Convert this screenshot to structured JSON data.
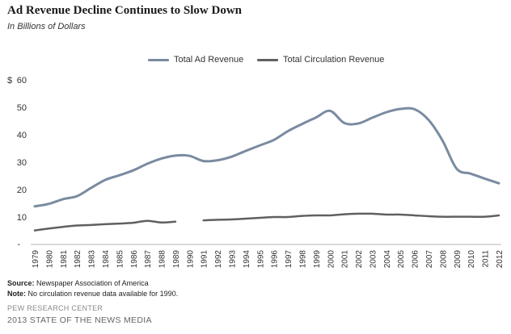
{
  "header": {
    "title": "Ad Revenue  Decline  Continues  to  Slow Down",
    "subtitle": "In Billions of Dollars"
  },
  "legend": {
    "items": [
      {
        "label": "Total Ad Revenue",
        "color": "#7a8ba0"
      },
      {
        "label": "Total Circulation Revenue",
        "color": "#606060"
      }
    ]
  },
  "axis": {
    "currency_symbol": "$",
    "y_dash_label": "-"
  },
  "chart_data": {
    "type": "line",
    "title": "Ad Revenue  Decline  Continues  to  Slow Down",
    "subtitle": "In Billions of Dollars",
    "x": [
      "1979",
      "1980",
      "1981",
      "1982",
      "1983",
      "1984",
      "1985",
      "1986",
      "1987",
      "1988",
      "1989",
      "1990",
      "1991",
      "1992",
      "1993",
      "1994",
      "1995",
      "1996",
      "1997",
      "1998",
      "1999",
      "2000",
      "2001",
      "2002",
      "2003",
      "2004",
      "2005",
      "2006",
      "2007",
      "2008",
      "2009",
      "2010",
      "2011",
      "2012"
    ],
    "series": [
      {
        "name": "Total Ad Revenue",
        "values": [
          13.9,
          14.8,
          16.5,
          17.6,
          20.6,
          23.5,
          25.2,
          27.0,
          29.4,
          31.3,
          32.4,
          32.3,
          30.4,
          30.7,
          32.0,
          34.1,
          36.1,
          38.1,
          41.3,
          43.9,
          46.3,
          48.7,
          44.3,
          44.1,
          46.2,
          48.2,
          49.4,
          49.3,
          45.4,
          37.8,
          27.6,
          25.8,
          24.0,
          22.3
        ]
      },
      {
        "name": "Total Circulation Revenue",
        "values": [
          5.1,
          5.8,
          6.4,
          6.9,
          7.1,
          7.4,
          7.6,
          7.9,
          8.6,
          8.0,
          8.3,
          null,
          8.8,
          9.0,
          9.1,
          9.4,
          9.7,
          10.0,
          10.0,
          10.4,
          10.6,
          10.6,
          11.0,
          11.2,
          11.2,
          10.9,
          10.9,
          10.6,
          10.3,
          10.1,
          10.1,
          10.1,
          10.1,
          10.6
        ]
      }
    ],
    "yticks": [
      10,
      20,
      30,
      40,
      50,
      60
    ],
    "ylim": [
      0,
      60
    ],
    "grid": false,
    "legend_position": "top-center"
  },
  "footer": {
    "source_label": "Source:",
    "source_text": " Newspaper Association of America",
    "note_label": "Note:",
    "note_text": " No circulation revenue data available for 1990.",
    "org": "PEW RESEARCH CENTER",
    "report": "2013 STATE OF THE NEWS MEDIA"
  }
}
